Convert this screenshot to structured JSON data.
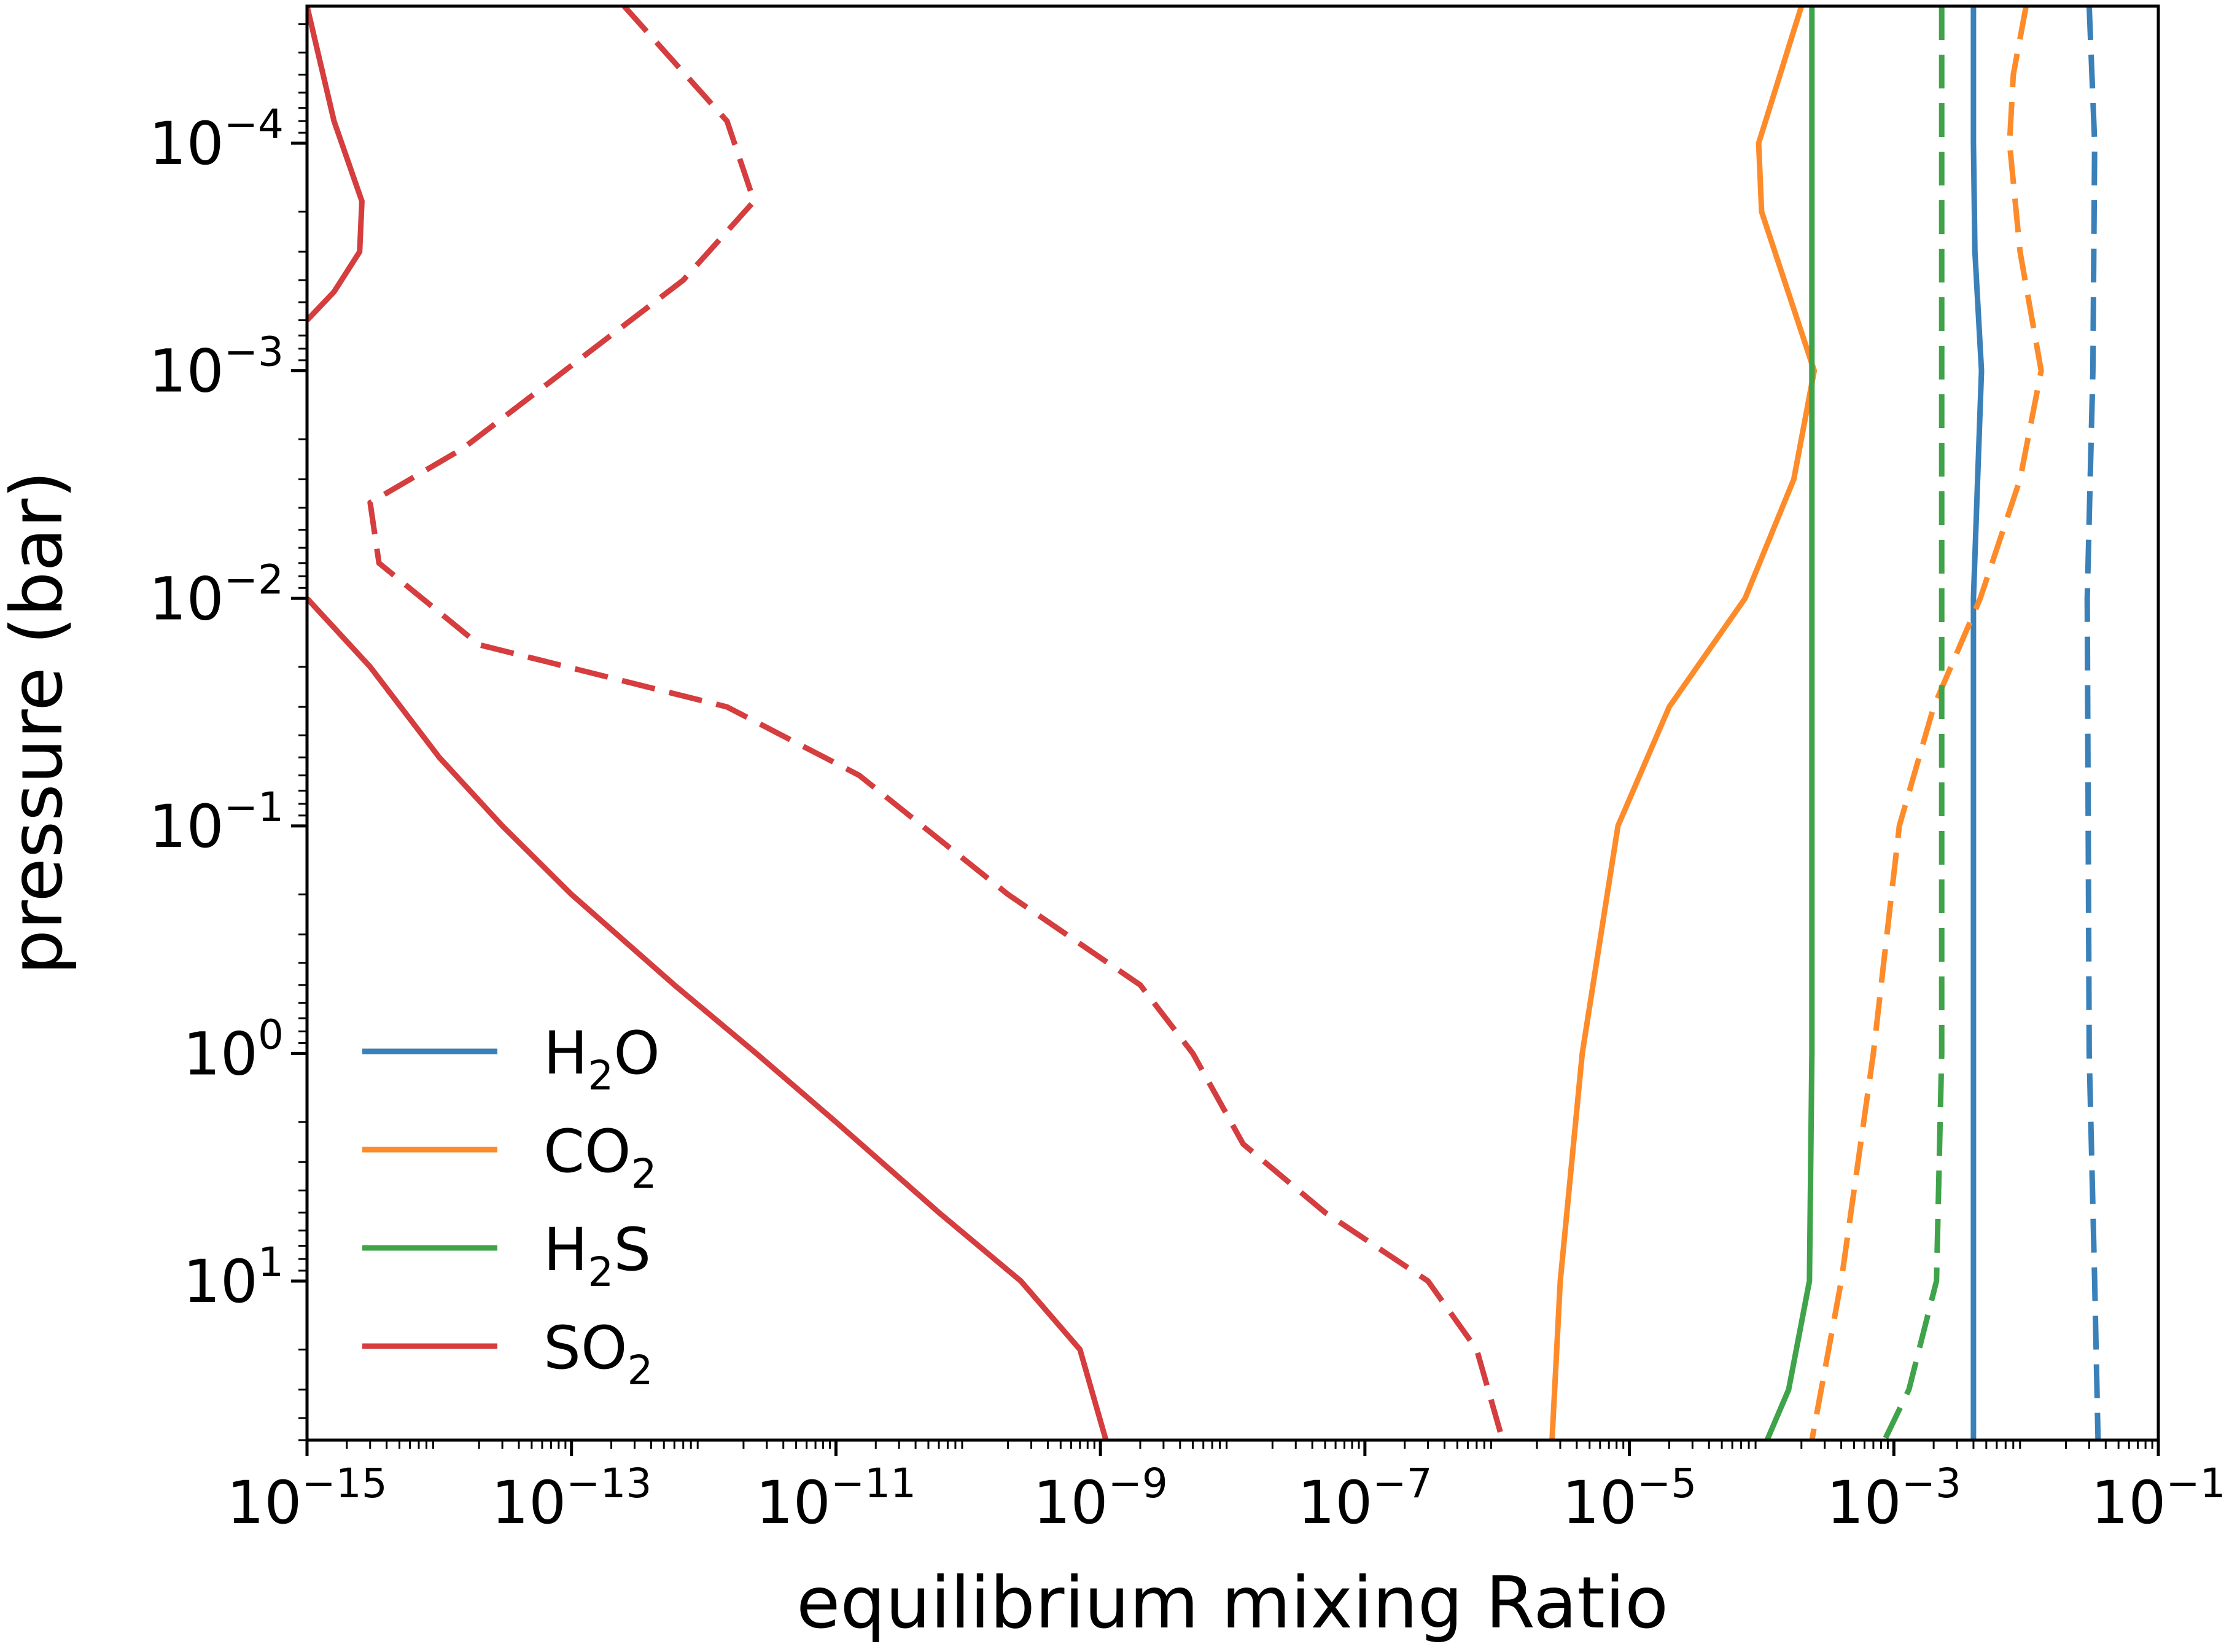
{
  "chart_data": {
    "type": "line",
    "xlabel": "equilibrium mixing Ratio",
    "ylabel": "pressure (bar)",
    "xscale": "log",
    "yscale": "log",
    "y_inverted": true,
    "xlim": [
      1e-15,
      0.1
    ],
    "ylim": [
      50,
      2.5e-05
    ],
    "grid": false,
    "legend_position": "lower-left",
    "x_ticks": [
      {
        "value": 1e-15,
        "base": "10",
        "exp": "−15"
      },
      {
        "value": 1e-13,
        "base": "10",
        "exp": "−13"
      },
      {
        "value": 1e-11,
        "base": "10",
        "exp": "−11"
      },
      {
        "value": 1e-09,
        "base": "10",
        "exp": "−9"
      },
      {
        "value": 1e-07,
        "base": "10",
        "exp": "−7"
      },
      {
        "value": 1e-05,
        "base": "10",
        "exp": "−5"
      },
      {
        "value": 0.001,
        "base": "10",
        "exp": "−3"
      },
      {
        "value": 0.1,
        "base": "10",
        "exp": "−1"
      }
    ],
    "y_ticks": [
      {
        "value": 1e-05,
        "base": "10",
        "exp": "−5"
      },
      {
        "value": 0.0001,
        "base": "10",
        "exp": "−4"
      },
      {
        "value": 0.001,
        "base": "10",
        "exp": "−3"
      },
      {
        "value": 0.01,
        "base": "10",
        "exp": "−2"
      },
      {
        "value": 0.1,
        "base": "10",
        "exp": "−1"
      },
      {
        "value": 1,
        "base": "10",
        "exp": "0"
      },
      {
        "value": 10,
        "base": "10",
        "exp": "1"
      }
    ],
    "legend": [
      {
        "main": "H",
        "sub": "2",
        "tail": "O",
        "color": "#3a80b9"
      },
      {
        "main": "CO",
        "sub": "2",
        "tail": "",
        "color": "#fe8b2a"
      },
      {
        "main": "H",
        "sub": "2",
        "tail": "S",
        "color": "#3fa34a"
      },
      {
        "main": "SO",
        "sub": "2",
        "tail": "",
        "color": "#d53d3e"
      }
    ],
    "series": [
      {
        "name": "H2O",
        "color": "#3a80b9",
        "style": "solid",
        "points": [
          [
            0.004,
            2.5e-05
          ],
          [
            0.004,
            0.0001
          ],
          [
            0.0041,
            0.0003
          ],
          [
            0.0046,
            0.001
          ],
          [
            0.0043,
            0.003
          ],
          [
            0.004,
            0.01
          ],
          [
            0.004,
            1
          ],
          [
            0.004,
            50
          ]
        ]
      },
      {
        "name": "H2O",
        "color": "#3a80b9",
        "style": "dashed",
        "points": [
          [
            0.03,
            2.5e-05
          ],
          [
            0.033,
            0.0001
          ],
          [
            0.032,
            0.001
          ],
          [
            0.029,
            0.01
          ],
          [
            0.03,
            1
          ],
          [
            0.033,
            10
          ],
          [
            0.035,
            50
          ]
        ]
      },
      {
        "name": "CO2",
        "color": "#fe8b2a",
        "style": "solid",
        "points": [
          [
            0.0002,
            2.5e-05
          ],
          [
            9.5e-05,
            0.0001
          ],
          [
            0.0001,
            0.0002
          ],
          [
            0.00025,
            0.001
          ],
          [
            0.000175,
            0.003
          ],
          [
            7.5e-05,
            0.01
          ],
          [
            2e-05,
            0.03
          ],
          [
            8.2e-06,
            0.1
          ],
          [
            4.4e-06,
            1
          ],
          [
            3e-06,
            10
          ],
          [
            2.6e-06,
            50
          ]
        ]
      },
      {
        "name": "CO2",
        "color": "#fe8b2a",
        "style": "dashed",
        "points": [
          [
            0.01,
            2.5e-05
          ],
          [
            0.008,
            5e-05
          ],
          [
            0.0075,
            0.0001
          ],
          [
            0.009,
            0.0003
          ],
          [
            0.013,
            0.001
          ],
          [
            0.009,
            0.003
          ],
          [
            0.0045,
            0.01
          ],
          [
            0.002,
            0.03
          ],
          [
            0.0011,
            0.1
          ],
          [
            0.0007,
            1
          ],
          [
            0.0004,
            10
          ],
          [
            0.00024,
            50
          ]
        ]
      },
      {
        "name": "H2S",
        "color": "#3fa34a",
        "style": "solid",
        "points": [
          [
            0.00024,
            2.5e-05
          ],
          [
            0.00024,
            0.001
          ],
          [
            0.00024,
            1
          ],
          [
            0.00023,
            10
          ],
          [
            0.00016,
            30
          ],
          [
            0.00011,
            50
          ]
        ]
      },
      {
        "name": "H2S",
        "color": "#3fa34a",
        "style": "dashed",
        "points": [
          [
            0.0023,
            2.5e-05
          ],
          [
            0.0023,
            0.001
          ],
          [
            0.0023,
            1
          ],
          [
            0.0021,
            10
          ],
          [
            0.0013,
            30
          ],
          [
            0.00085,
            50
          ]
        ]
      },
      {
        "name": "SO2",
        "color": "#d53d3e",
        "style": "solid",
        "points": [
          [
            1e-15,
            2.5e-05
          ],
          [
            1.6e-15,
            8e-05
          ],
          [
            2.6e-15,
            0.00018
          ],
          [
            2.5e-15,
            0.0003
          ],
          [
            1.6e-15,
            0.00045
          ],
          [
            1e-15,
            0.0006
          ]
        ]
      },
      {
        "name": "SO2",
        "color": "#d53d3e",
        "style": "solid",
        "points": [
          [
            1e-15,
            0.01
          ],
          [
            3e-15,
            0.02
          ],
          [
            1e-14,
            0.05
          ],
          [
            3e-14,
            0.1
          ],
          [
            1e-13,
            0.2
          ],
          [
            6e-13,
            0.5
          ],
          [
            2.5e-12,
            1.0
          ],
          [
            1e-11,
            2.0
          ],
          [
            6e-11,
            5.0
          ],
          [
            2.5e-10,
            10.0
          ],
          [
            7e-10,
            20.0
          ],
          [
            1.1e-09,
            50.0
          ]
        ]
      },
      {
        "name": "SO2",
        "color": "#d53d3e",
        "style": "dashed",
        "points": [
          [
            2.5e-13,
            2.5e-05
          ],
          [
            1.5e-12,
            8e-05
          ],
          [
            2.4e-12,
            0.00018
          ],
          [
            7e-13,
            0.0004
          ],
          [
            1.5e-14,
            0.0022
          ],
          [
            3e-15,
            0.0038
          ],
          [
            3.5e-15,
            0.007
          ],
          [
            2e-14,
            0.016
          ],
          [
            1.5e-12,
            0.03
          ],
          [
            1.5e-11,
            0.06
          ],
          [
            2e-10,
            0.2
          ],
          [
            2e-09,
            0.5
          ],
          [
            5e-09,
            1.0
          ],
          [
            1.2e-08,
            2.5
          ],
          [
            5e-08,
            5.0
          ],
          [
            3e-07,
            10.0
          ],
          [
            7e-07,
            20.0
          ],
          [
            1.1e-06,
            50.0
          ]
        ]
      }
    ]
  }
}
